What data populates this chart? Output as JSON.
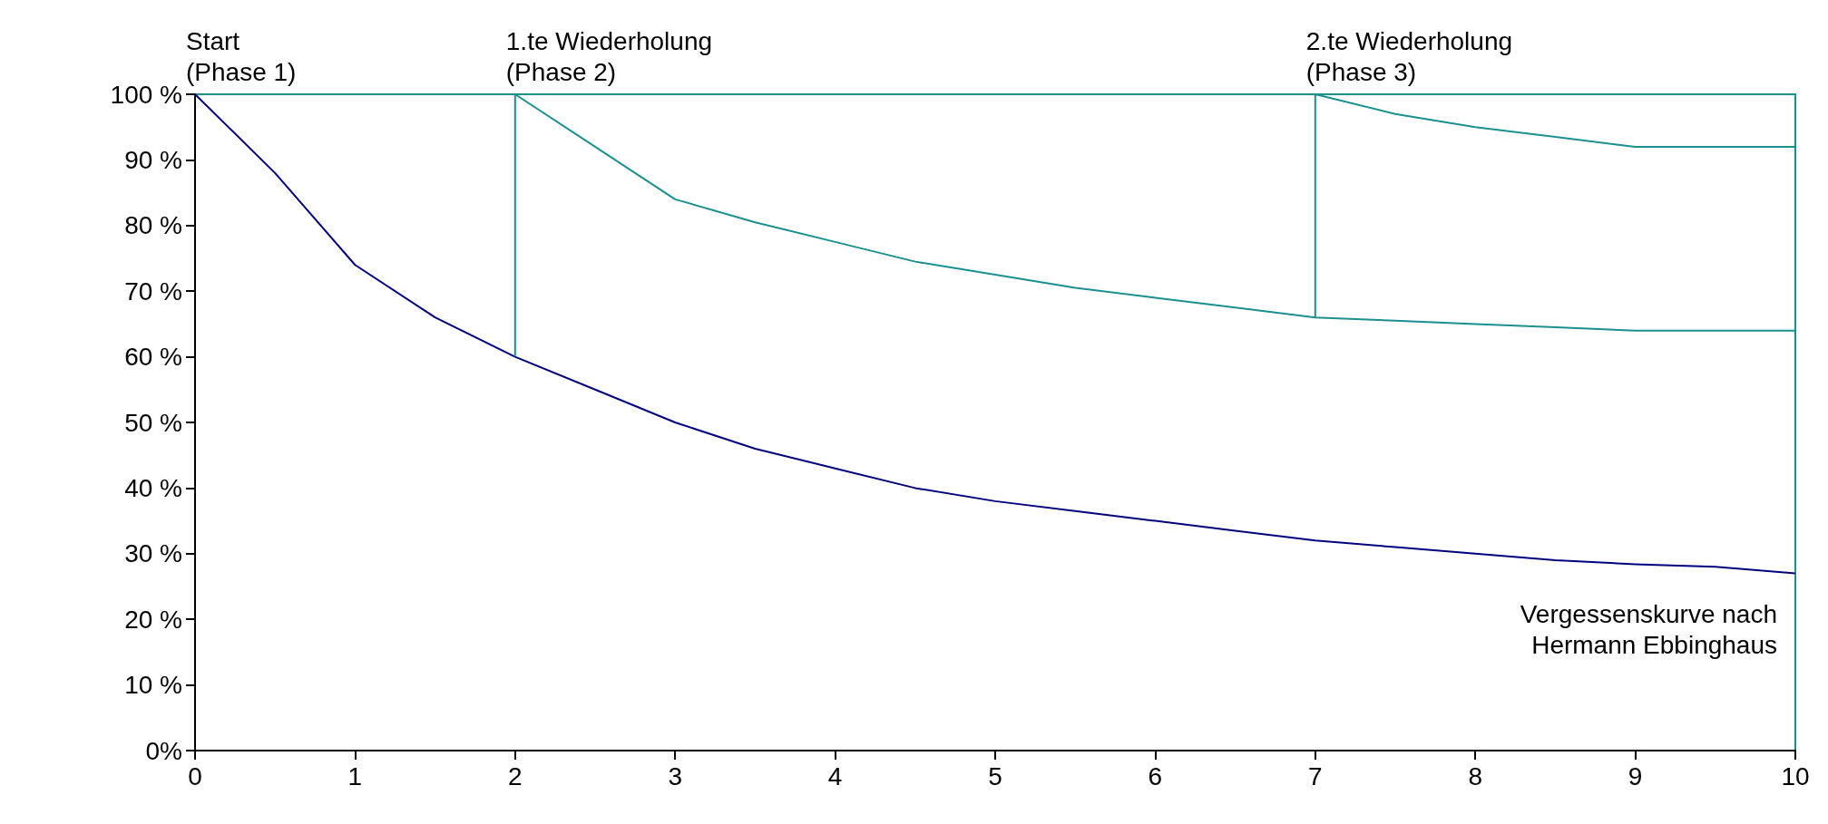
{
  "chart_data": {
    "type": "line",
    "xlim": [
      0,
      10
    ],
    "ylim": [
      0,
      100
    ],
    "xticks": [
      0,
      1,
      2,
      3,
      4,
      5,
      6,
      7,
      8,
      9,
      10
    ],
    "yticks": [
      {
        "value": 0,
        "label": "0%"
      },
      {
        "value": 10,
        "label": "10 %"
      },
      {
        "value": 20,
        "label": "20 %"
      },
      {
        "value": 30,
        "label": "30 %"
      },
      {
        "value": 40,
        "label": "40 %"
      },
      {
        "value": 50,
        "label": "50 %"
      },
      {
        "value": 60,
        "label": "60 %"
      },
      {
        "value": 70,
        "label": "70 %"
      },
      {
        "value": 80,
        "label": "80 %"
      },
      {
        "value": 90,
        "label": "90 %"
      },
      {
        "value": 100,
        "label": "100 %"
      }
    ],
    "grid": false,
    "marker": "none",
    "line_style": "solid",
    "series": [
      {
        "color": "#000080",
        "x": [
          0,
          0.5,
          1,
          1.5,
          2,
          2.5,
          3,
          3.5,
          4,
          4.5,
          5,
          5.5,
          6,
          6.5,
          7,
          7.5,
          8,
          8.5,
          9,
          9.5,
          10
        ],
        "values": [
          100,
          88,
          74,
          66,
          60,
          55,
          50,
          46,
          43,
          40,
          38,
          36.5,
          35,
          33.5,
          32,
          31,
          30,
          29,
          28.4,
          28,
          27
        ]
      },
      {
        "color": "#1a9090",
        "x": [
          2,
          2,
          2.5,
          3,
          3.5,
          4,
          4.5,
          5,
          5.5,
          6,
          6.5,
          7,
          7.5,
          8,
          8.5,
          9,
          9.5,
          10
        ],
        "values": [
          60,
          100,
          92,
          84,
          80.5,
          77.5,
          74.5,
          72.5,
          70.5,
          69,
          67.5,
          66,
          65.5,
          65,
          64.5,
          64,
          64,
          64
        ]
      },
      {
        "color": "#1a9090",
        "x": [
          7,
          7,
          7.5,
          8,
          8.5,
          9,
          9.5,
          10
        ],
        "values": [
          66,
          100,
          97,
          95,
          93.5,
          92,
          92,
          92
        ]
      }
    ],
    "annotations": [
      {
        "text": "Start\n(Phase 1)",
        "x": 0,
        "y": 100
      },
      {
        "text": "1.te Wiederholung\n(Phase 2)",
        "x": 2,
        "y": 100
      },
      {
        "text": "2.te Wiederholung\n(Phase 3)",
        "x": 7,
        "y": 100
      },
      {
        "text": "Vergessenskurve nach\nHermann Ebbinghaus",
        "x": 10,
        "y": 27
      }
    ]
  }
}
